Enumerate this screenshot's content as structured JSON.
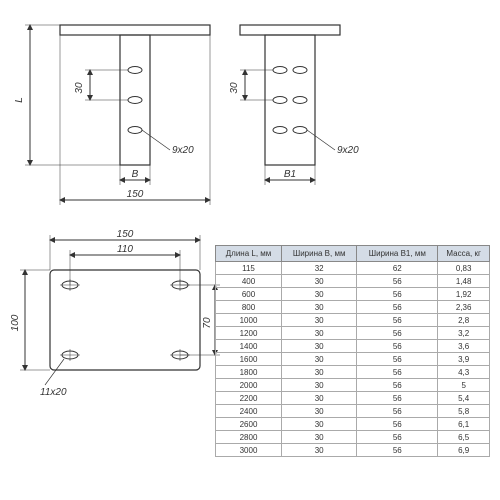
{
  "drawing": {
    "stroke_color": "#333333",
    "stroke_width": 1,
    "dim_color": "#333333",
    "background": "#ffffff",
    "front_view": {
      "dims": {
        "B": "B",
        "L": "L",
        "slot_pitch": "30",
        "slot": "9x20",
        "base_width": "150"
      }
    },
    "side_view": {
      "dims": {
        "B1": "B1",
        "slot_pitch": "30",
        "slot": "9x20"
      }
    },
    "top_view": {
      "dims": {
        "outer_w": "150",
        "hole_w": "110",
        "outer_h": "100",
        "hole_h": "70",
        "slot": "11x20"
      }
    }
  },
  "table": {
    "columns": [
      "Длина L, мм",
      "Ширина B, мм",
      "Ширина B1, мм",
      "Масса, кг"
    ],
    "rows": [
      [
        "115",
        "32",
        "62",
        "0,83"
      ],
      [
        "400",
        "30",
        "56",
        "1,48"
      ],
      [
        "600",
        "30",
        "56",
        "1,92"
      ],
      [
        "800",
        "30",
        "56",
        "2,36"
      ],
      [
        "1000",
        "30",
        "56",
        "2,8"
      ],
      [
        "1200",
        "30",
        "56",
        "3,2"
      ],
      [
        "1400",
        "30",
        "56",
        "3,6"
      ],
      [
        "1600",
        "30",
        "56",
        "3,9"
      ],
      [
        "1800",
        "30",
        "56",
        "4,3"
      ],
      [
        "2000",
        "30",
        "56",
        "5"
      ],
      [
        "2200",
        "30",
        "56",
        "5,4"
      ],
      [
        "2400",
        "30",
        "56",
        "5,8"
      ],
      [
        "2600",
        "30",
        "56",
        "6,1"
      ],
      [
        "2800",
        "30",
        "56",
        "6,5"
      ],
      [
        "3000",
        "30",
        "56",
        "6,9"
      ]
    ],
    "header_bg": "#d4dce6",
    "border_color": "#888888"
  }
}
